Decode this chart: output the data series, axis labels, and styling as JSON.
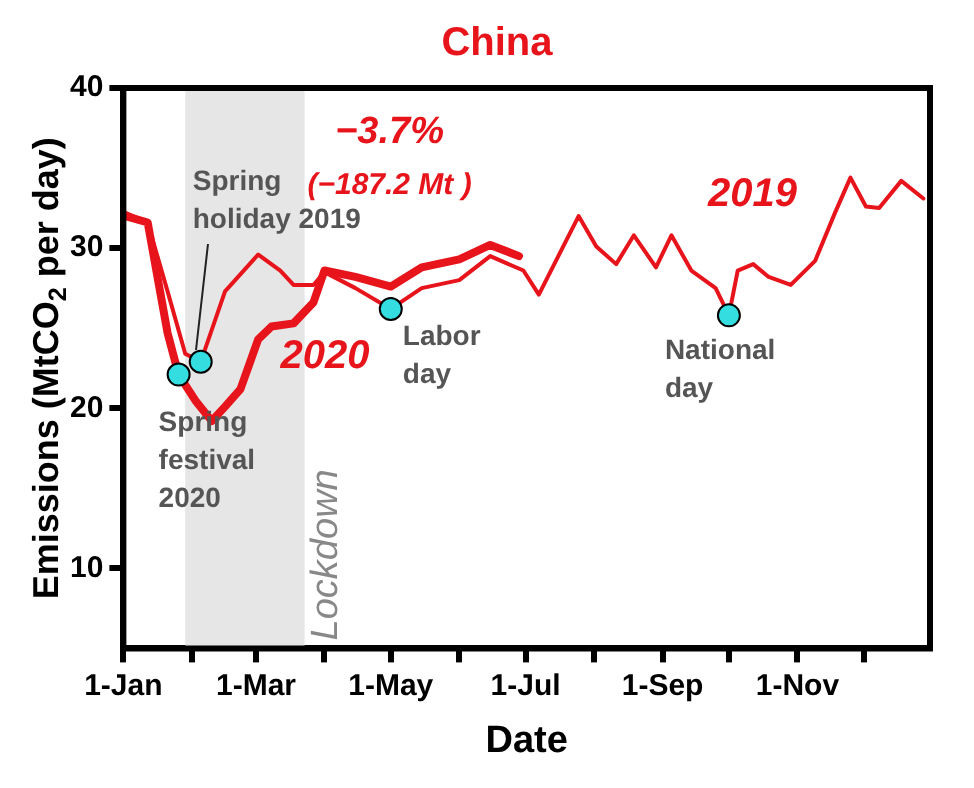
{
  "chart_data": {
    "type": "line",
    "title": "China",
    "xlabel": "Date",
    "ylabel": "Emissions (MtCO$_{2}$ per day)",
    "xlim": [
      "--01-01",
      "--12-31"
    ],
    "xticks": [
      {
        "value": "--01-01",
        "label": "1-Jan"
      },
      {
        "value": "--02-01",
        "label": null
      },
      {
        "value": "--03-01",
        "label": "1-Mar"
      },
      {
        "value": "--04-01",
        "label": null
      },
      {
        "value": "--05-01",
        "label": "1-May"
      },
      {
        "value": "--06-01",
        "label": null
      },
      {
        "value": "--07-01",
        "label": "1-Jul"
      },
      {
        "value": "--08-01",
        "label": null
      },
      {
        "value": "--09-01",
        "label": "1-Sep"
      },
      {
        "value": "--10-01",
        "label": null
      },
      {
        "value": "--11-01",
        "label": "1-Nov"
      },
      {
        "value": "--12-01",
        "label": null
      }
    ],
    "ylim": [
      5,
      40
    ],
    "yticks": [
      10,
      20,
      30,
      40
    ],
    "grid": false,
    "legend": false,
    "marker": "none",
    "line_style": "solid",
    "series": [
      {
        "name": "2019",
        "color": "#e8141b",
        "x": [
          "--01-02",
          "--01-12",
          "--01-21",
          "--01-29",
          "--02-05",
          "--02-16",
          "--03-02",
          "--03-12",
          "--03-18",
          "--03-27",
          "--04-01",
          "--04-15",
          "--05-01",
          "--05-15",
          "--06-01",
          "--06-15",
          "--06-30",
          "--07-07",
          "--07-25",
          "--08-02",
          "--08-11",
          "--08-19",
          "--08-29",
          "--09-05",
          "--09-14",
          "--09-25",
          "--10-01",
          "--10-05",
          "--10-12",
          "--10-19",
          "--10-29",
          "--11-09",
          "--11-18",
          "--11-25",
          "--12-02",
          "--12-08",
          "--12-18",
          "--12-28"
        ],
        "values": [
          32.2,
          31.6,
          27.3,
          23.4,
          22.9,
          27.3,
          29.6,
          28.6,
          27.7,
          27.7,
          28.5,
          27.5,
          26.2,
          27.5,
          28.0,
          29.5,
          28.6,
          27.1,
          32.0,
          30.1,
          29.0,
          30.8,
          28.8,
          30.8,
          28.6,
          27.5,
          25.8,
          28.6,
          29.0,
          28.2,
          27.7,
          29.2,
          32.2,
          34.4,
          32.6,
          32.5,
          34.2,
          33.1
        ]
      },
      {
        "name": "2020",
        "color": "#e8141b",
        "x": [
          "--01-02",
          "--01-12",
          "--01-21",
          "--01-26",
          "--02-03",
          "--02-10",
          "--02-16",
          "--02-23",
          "--03-02",
          "--03-08",
          "--03-18",
          "--03-27",
          "--04-01",
          "--04-15",
          "--05-01",
          "--05-15",
          "--06-01",
          "--06-15",
          "--06-28"
        ],
        "values": [
          32.0,
          31.6,
          24.7,
          22.1,
          20.4,
          19.2,
          20.1,
          21.2,
          24.3,
          25.1,
          25.3,
          26.6,
          28.6,
          28.2,
          27.6,
          28.8,
          29.3,
          30.2,
          29.5
        ]
      }
    ],
    "bands": [
      {
        "axis": "x",
        "from": "--01-29",
        "to": "--03-23",
        "label": "Lockdown",
        "color": "#e6e6e6"
      }
    ],
    "annotations": [
      "−3.7%",
      "(−187.2 Mt )",
      {
        "text": "Spring holiday 2019",
        "x": "--02-05",
        "y": 22.9
      },
      {
        "text": "Spring festival 2020",
        "x": "--01-26",
        "y": 22.1
      },
      {
        "text": "Labor day",
        "x": "--05-01",
        "y": 26.2
      },
      {
        "text": "National day",
        "x": "--10-01",
        "y": 25.8
      }
    ]
  }
}
